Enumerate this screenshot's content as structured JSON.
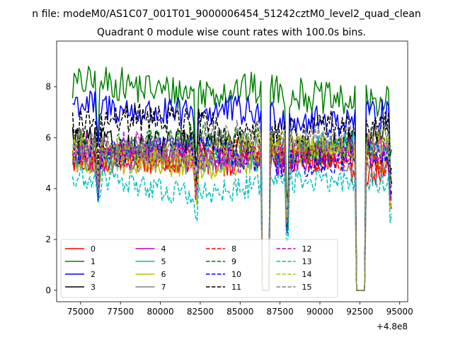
{
  "figure": {
    "suptitle": "n file: modeM0/AS1C07_001T01_9000006454_51242cztM0_level2_quad_clean"
  },
  "chart_data": {
    "type": "line",
    "title": "Quadrant 0 module wise count rates with 100.0s bins.",
    "xlabel": "",
    "ylabel": "",
    "x_offset_label": "+4.8e8",
    "xlim": [
      73500,
      95500
    ],
    "ylim": [
      -0.45,
      9.8
    ],
    "x_ticks": [
      75000,
      77500,
      80000,
      82500,
      85000,
      87500,
      90000,
      92500,
      95000
    ],
    "x_tick_labels": [
      "75000",
      "77500",
      "80000",
      "82500",
      "85000",
      "87500",
      "90000",
      "92500",
      "95000"
    ],
    "y_ticks": [
      0,
      2,
      4,
      6,
      8
    ],
    "y_tick_labels": [
      "0",
      "2",
      "4",
      "6",
      "8"
    ],
    "x_range": [
      74500,
      94500
    ],
    "x_step": 100,
    "gaps": [
      [
        86400,
        86800
      ],
      [
        92250,
        92800
      ]
    ],
    "dips": [
      {
        "at": 76100,
        "depth": 1.5
      },
      {
        "at": 82250,
        "depth": 2.2
      },
      {
        "at": 87950,
        "depth": 4.3
      },
      {
        "at": 94450,
        "depth": 2.5
      }
    ],
    "grid": false,
    "legend": {
      "placement": "lower-left",
      "ncol": 4
    },
    "series": [
      {
        "name": "0",
        "color": "#ff0000",
        "dash": "solid",
        "mean": 5.0
      },
      {
        "name": "1",
        "color": "#008000",
        "dash": "solid",
        "mean": 7.8
      },
      {
        "name": "2",
        "color": "#0000ff",
        "dash": "solid",
        "mean": 7.0
      },
      {
        "name": "3",
        "color": "#000000",
        "dash": "solid",
        "mean": 5.8
      },
      {
        "name": "4",
        "color": "#bf00bf",
        "dash": "solid",
        "mean": 5.3
      },
      {
        "name": "5",
        "color": "#00bfbf",
        "dash": "solid",
        "mean": 5.4
      },
      {
        "name": "6",
        "color": "#bfbf00",
        "dash": "solid",
        "mean": 5.1
      },
      {
        "name": "7",
        "color": "#808080",
        "dash": "solid",
        "mean": 5.2
      },
      {
        "name": "8",
        "color": "#ff0000",
        "dash": "dashed",
        "mean": 5.2
      },
      {
        "name": "9",
        "color": "#008000",
        "dash": "dashed",
        "mean": 5.7
      },
      {
        "name": "10",
        "color": "#0000ff",
        "dash": "dashed",
        "mean": 5.3
      },
      {
        "name": "11",
        "color": "#000000",
        "dash": "dashed",
        "mean": 6.5
      },
      {
        "name": "12",
        "color": "#bf00bf",
        "dash": "dashed",
        "mean": 5.5
      },
      {
        "name": "13",
        "color": "#00bfbf",
        "dash": "dashed",
        "mean": 4.2
      },
      {
        "name": "14",
        "color": "#bfbf00",
        "dash": "dashed",
        "mean": 5.6
      },
      {
        "name": "15",
        "color": "#808080",
        "dash": "dashed",
        "mean": 5.9
      }
    ]
  }
}
